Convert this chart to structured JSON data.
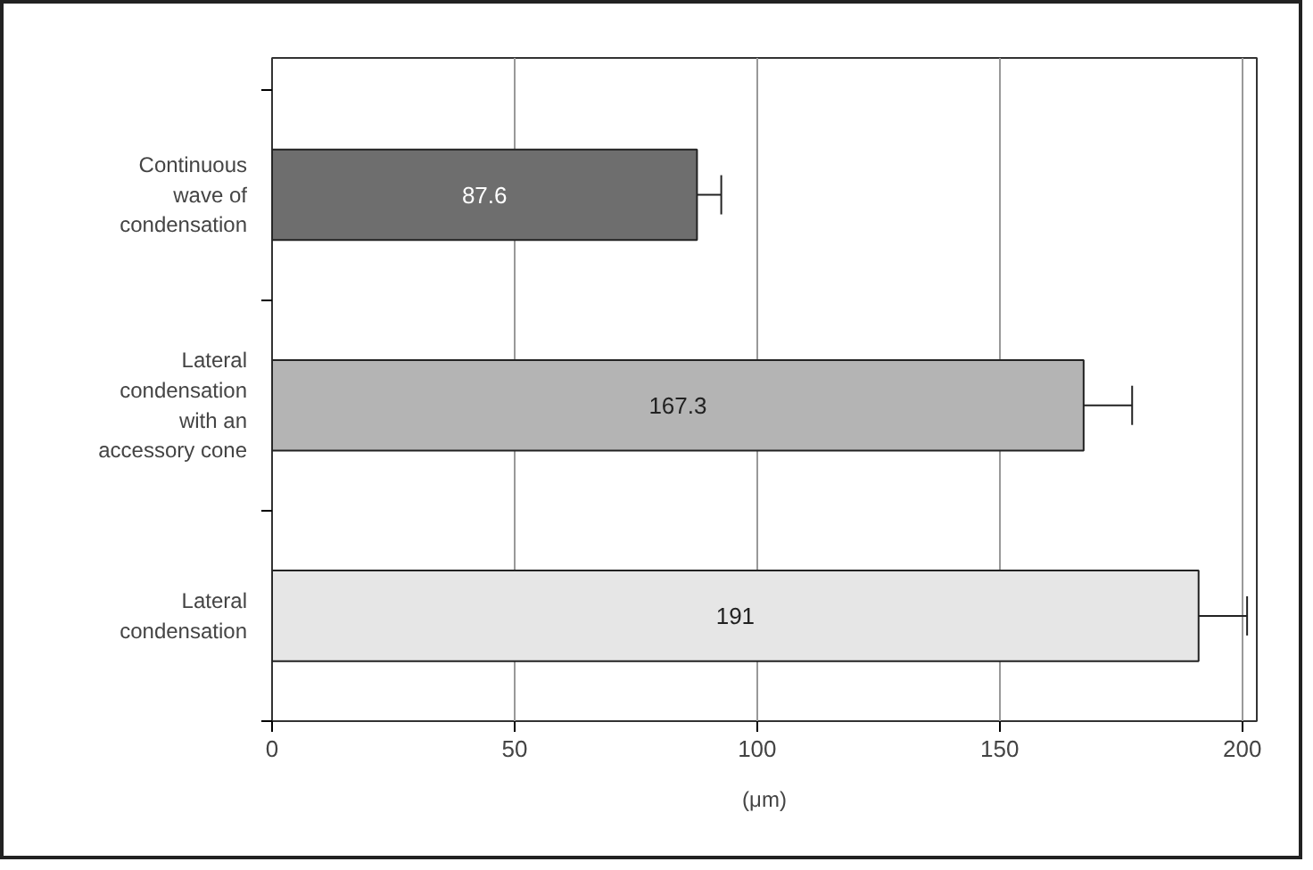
{
  "chart_data": {
    "type": "bar",
    "orientation": "horizontal",
    "xlabel": "(μm)",
    "categories": [
      "Continuous wave of condensation",
      "Lateral condensation with an accessory cone",
      "Lateral condensation"
    ],
    "values": [
      87.6,
      167.3,
      191
    ],
    "colors": [
      "#6e6e6e",
      "#b4b4b4",
      "#e6e6e6"
    ],
    "errors": [
      5,
      10,
      10
    ],
    "data_labels": true,
    "xlim": [
      0,
      203
    ],
    "xticks": [
      0,
      50,
      100,
      150,
      200
    ],
    "grid": "x"
  }
}
